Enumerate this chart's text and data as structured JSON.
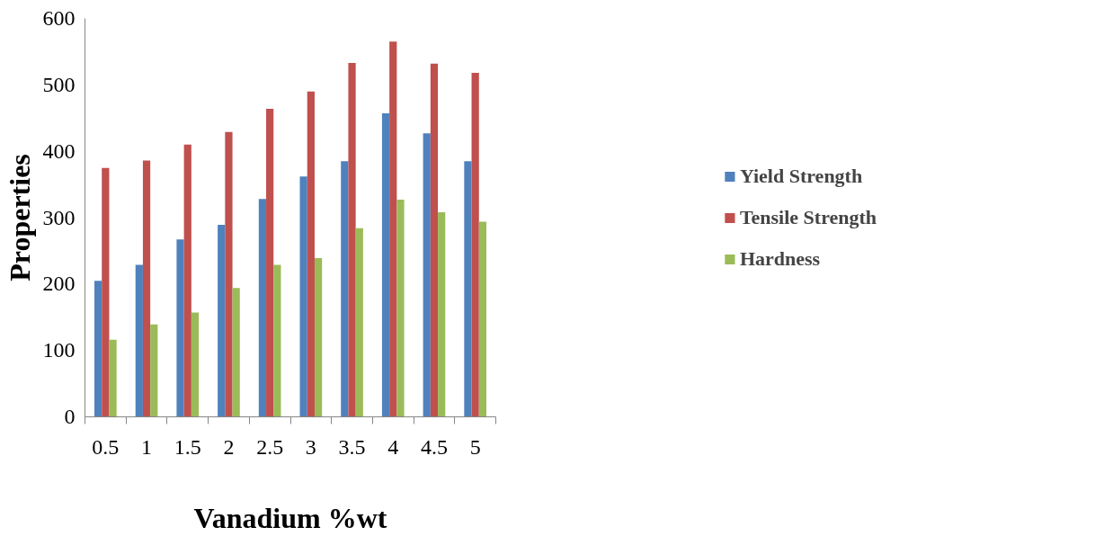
{
  "chart_data": {
    "type": "bar",
    "xlabel": "Vanadium %wt",
    "ylabel": "Properties",
    "categories": [
      "0.5",
      "1",
      "1.5",
      "2",
      "2.5",
      "3",
      "3.5",
      "4",
      "4.5",
      "5"
    ],
    "series": [
      {
        "name": "Yield Strength",
        "color": "#4f81bd",
        "values": [
          205,
          229,
          267,
          289,
          328,
          362,
          385,
          457,
          427,
          385
        ]
      },
      {
        "name": "Tensile Strength",
        "color": "#c0504d",
        "values": [
          375,
          386,
          410,
          429,
          464,
          490,
          533,
          565,
          532,
          518
        ]
      },
      {
        "name": "Hardness",
        "color": "#9bbb59",
        "values": [
          116,
          139,
          157,
          194,
          229,
          239,
          284,
          327,
          308,
          294
        ]
      }
    ],
    "ylim": [
      0,
      600
    ],
    "yticks": [
      0,
      100,
      200,
      300,
      400,
      500,
      600
    ],
    "grid": false,
    "legend": "right"
  }
}
